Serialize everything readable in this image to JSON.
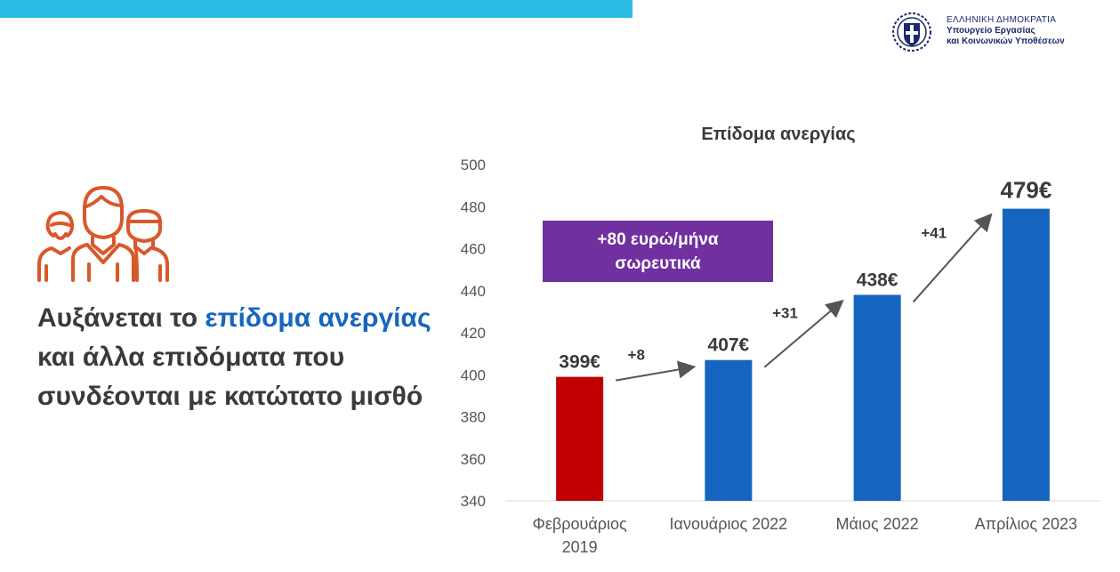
{
  "header": {
    "ministry_line1": "ΕΛΛΗΝΙΚΗ ΔΗΜΟΚΡΑΤΙΑ",
    "ministry_line2": "Υπουργείο Εργασίας",
    "ministry_line3": "και Κοινωνικών Υποθέσεων",
    "accent_color": "#29bde6"
  },
  "headline": {
    "part1": "Αυξάνεται το ",
    "highlight": "επίδομα ανεργίας",
    "part2": " και άλλα επιδόματα που συνδέονται με κατώτατο μισθό",
    "text_color": "#3a3a3a",
    "highlight_color": "#1565c0"
  },
  "callout": {
    "line1": "+80 ευρώ/μήνα",
    "line2": "σωρευτικά",
    "color": "#7030a0"
  },
  "chart_data": {
    "type": "bar",
    "title": "Επίδομα ανεργίας",
    "xlabel": "",
    "ylabel": "",
    "ylim": [
      340,
      500
    ],
    "yticks": [
      340,
      360,
      380,
      400,
      420,
      440,
      460,
      480,
      500
    ],
    "grid": false,
    "categories": [
      [
        "Φεβρουάριος",
        "2019"
      ],
      [
        "Ιανουάριος 2022"
      ],
      [
        "Μάιος 2022"
      ],
      [
        "Απρίλιος 2023"
      ]
    ],
    "values": [
      399,
      407,
      438,
      479
    ],
    "value_labels": [
      "399€",
      "407€",
      "438€",
      "479€"
    ],
    "bar_colors": [
      "#c00000",
      "#1565c0",
      "#1565c0",
      "#1565c0"
    ],
    "increments": [
      "+8",
      "+31",
      "+41"
    ]
  }
}
